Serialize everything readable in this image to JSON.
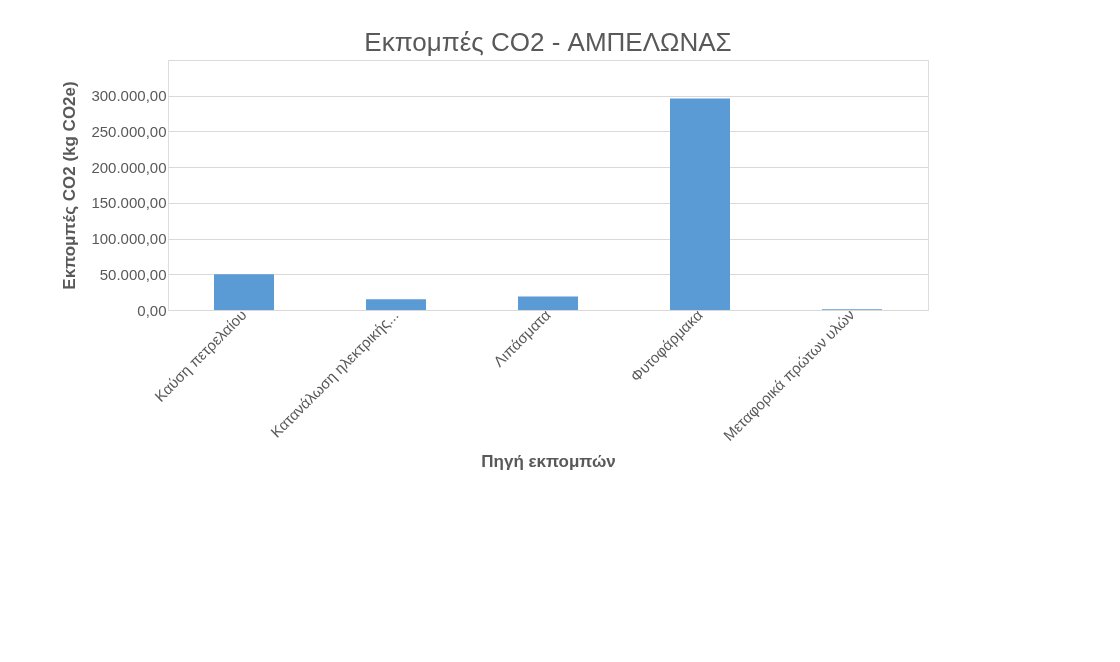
{
  "chart_data": {
    "type": "bar",
    "title": "Εκπομπές CO2 - ΑΜΠΕΛΩΝΑΣ",
    "xlabel": "Πηγή εκπομπών",
    "ylabel": "Εκπομπές CO2 (kg CO2e)",
    "categories": [
      "Καύση πετρελαίου",
      "Κατανάλωση ηλεκτρικής...",
      "Λιπάσματα",
      "Φυτοφάρμακα",
      "Μεταφορικά πρώτων υλών"
    ],
    "values": [
      50000,
      15000,
      19000,
      296000,
      1000
    ],
    "color": "#5b9bd5",
    "ylim": [
      0,
      350000
    ],
    "yticks": [
      {
        "value": 0,
        "label": "0,00"
      },
      {
        "value": 50000,
        "label": "50.000,00"
      },
      {
        "value": 100000,
        "label": "100.000,00"
      },
      {
        "value": 150000,
        "label": "150.000,00"
      },
      {
        "value": 200000,
        "label": "200.000,00"
      },
      {
        "value": 250000,
        "label": "250.000,00"
      },
      {
        "value": 300000,
        "label": "300.000,00"
      },
      {
        "value": 350000,
        "label": null
      }
    ],
    "grid": "y"
  }
}
